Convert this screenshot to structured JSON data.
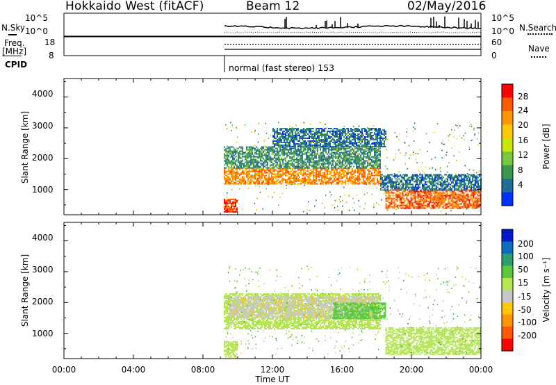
{
  "header": {
    "radar": "Hokkaido West (fitACF)",
    "beam": "Beam 12",
    "date": "02/May/2016"
  },
  "noise_panel": {
    "left_label": "N.Sky",
    "left_ticks": [
      "10^5",
      "10^0"
    ],
    "right_label": "N.Search",
    "right_ticks": [
      "10^5",
      "10^0"
    ]
  },
  "freq_panel": {
    "left_label_1": "Freq.",
    "left_label_2": "[MHz]",
    "left_ticks": [
      "18",
      "8"
    ],
    "right_label": "Nave",
    "right_ticks": [
      "60",
      "0"
    ]
  },
  "cpid_panel": {
    "label": "CPID",
    "mode": "normal (fast stereo) 153"
  },
  "axes": {
    "ylabel": "Slant Range [km]",
    "xlabel": "Time UT",
    "y_ticks": [
      "4000",
      "3000",
      "2000",
      "1000"
    ],
    "x_ticks": [
      "00:00",
      "04:00",
      "08:00",
      "12:00",
      "16:00",
      "20:00",
      "00:00"
    ]
  },
  "power_colorbar": {
    "label": "Power [dB]",
    "ticks": [
      "28",
      "24",
      "20",
      "16",
      "12",
      "8",
      "4"
    ],
    "colors": [
      "#ff0000",
      "#ff5a00",
      "#ff9600",
      "#ffc800",
      "#c8e600",
      "#78c83c",
      "#3c9650",
      "#1e6e96",
      "#0030ff"
    ]
  },
  "velocity_colorbar": {
    "label": "Velocity [m s⁻¹]",
    "ticks": [
      "200",
      "100",
      "50",
      "15",
      "-15",
      "-50",
      "-100",
      "-200"
    ],
    "colors": [
      "#0018c8",
      "#0a6ebe",
      "#2e9e6e",
      "#5ac83c",
      "#b4e650",
      "#c8c8c8",
      "#ffc800",
      "#ff9600",
      "#ff5a00",
      "#ff0000"
    ]
  },
  "chart_data": [
    {
      "type": "heatmap",
      "name": "Power",
      "x_range_hours": [
        0,
        24
      ],
      "y_range_km": [
        180,
        4600
      ],
      "data_start_hour": 9.2,
      "bands": [
        {
          "t0": 9.2,
          "t1": 18.2,
          "r0": 1180,
          "r1": 1700,
          "value_db": 24
        },
        {
          "t0": 9.2,
          "t1": 18.2,
          "r0": 1700,
          "r1": 2400,
          "value_db": 8
        },
        {
          "t0": 9.2,
          "t1": 10.0,
          "r0": 250,
          "r1": 700,
          "value_db": 28
        },
        {
          "t0": 18.5,
          "t1": 24.0,
          "r0": 400,
          "r1": 1000,
          "value_db": 26
        },
        {
          "t0": 18.2,
          "t1": 24.0,
          "r0": 1000,
          "r1": 1500,
          "value_db": 6
        },
        {
          "t0": 12.0,
          "t1": 18.5,
          "r0": 2400,
          "r1": 3000,
          "value_db": 6
        }
      ]
    },
    {
      "type": "heatmap",
      "name": "Velocity",
      "x_range_hours": [
        0,
        24
      ],
      "y_range_km": [
        180,
        4600
      ],
      "data_start_hour": 9.2,
      "bands": [
        {
          "t0": 9.2,
          "t1": 18.2,
          "r0": 1150,
          "r1": 2300,
          "value_ms": 0
        },
        {
          "t0": 9.5,
          "t1": 18.0,
          "r0": 1500,
          "r1": 2200,
          "value_ms": -40
        },
        {
          "t0": 9.2,
          "t1": 10.0,
          "r0": 250,
          "r1": 750,
          "value_ms": 0
        },
        {
          "t0": 18.5,
          "t1": 24.0,
          "r0": 300,
          "r1": 1200,
          "value_ms": 0
        },
        {
          "t0": 15.5,
          "t1": 18.5,
          "r0": 1500,
          "r1": 2000,
          "value_ms": 30
        }
      ]
    }
  ]
}
